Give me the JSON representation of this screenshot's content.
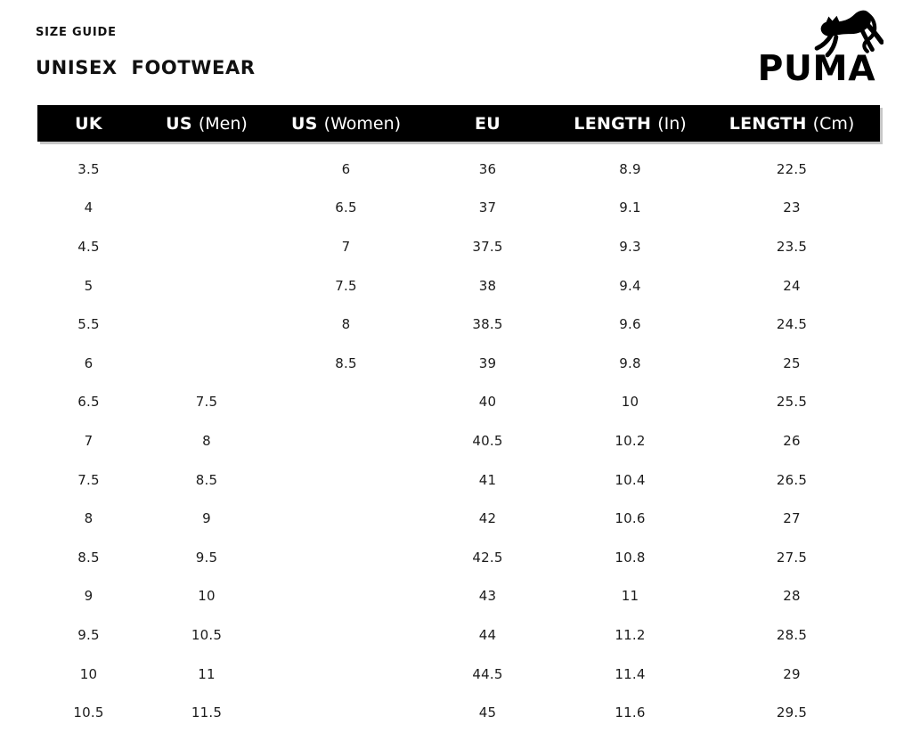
{
  "page": {
    "eyebrow": "SIZE GUIDE",
    "title": "UNISEX  FOOTWEAR"
  },
  "logo": {
    "brand": "PUMA",
    "icon": "leaping-cat"
  },
  "colors": {
    "header_bg": "#000000",
    "header_text": "#ffffff",
    "body_text": "#1c1c1c",
    "background": "#ffffff",
    "shadow": "#c6c6c6"
  },
  "table": {
    "columns": [
      {
        "strong": "UK",
        "light": ""
      },
      {
        "strong": "US",
        "light": "(Men)"
      },
      {
        "strong": "US",
        "light": "(Women)"
      },
      {
        "strong": "EU",
        "light": ""
      },
      {
        "strong": "LENGTH",
        "light": "(In)"
      },
      {
        "strong": "LENGTH",
        "light": "(Cm)"
      }
    ],
    "rows": [
      [
        "3.5",
        "",
        "6",
        "36",
        "8.9",
        "22.5"
      ],
      [
        "4",
        "",
        "6.5",
        "37",
        "9.1",
        "23"
      ],
      [
        "4.5",
        "",
        "7",
        "37.5",
        "9.3",
        "23.5"
      ],
      [
        "5",
        "",
        "7.5",
        "38",
        "9.4",
        "24"
      ],
      [
        "5.5",
        "",
        "8",
        "38.5",
        "9.6",
        "24.5"
      ],
      [
        "6",
        "",
        "8.5",
        "39",
        "9.8",
        "25"
      ],
      [
        "6.5",
        "7.5",
        "",
        "40",
        "10",
        "25.5"
      ],
      [
        "7",
        "8",
        "",
        "40.5",
        "10.2",
        "26"
      ],
      [
        "7.5",
        "8.5",
        "",
        "41",
        "10.4",
        "26.5"
      ],
      [
        "8",
        "9",
        "",
        "42",
        "10.6",
        "27"
      ],
      [
        "8.5",
        "9.5",
        "",
        "42.5",
        "10.8",
        "27.5"
      ],
      [
        "9",
        "10",
        "",
        "43",
        "11",
        "28"
      ],
      [
        "9.5",
        "10.5",
        "",
        "44",
        "11.2",
        "28.5"
      ],
      [
        "10",
        "11",
        "",
        "44.5",
        "11.4",
        "29"
      ],
      [
        "10.5",
        "11.5",
        "",
        "45",
        "11.6",
        "29.5"
      ]
    ]
  }
}
